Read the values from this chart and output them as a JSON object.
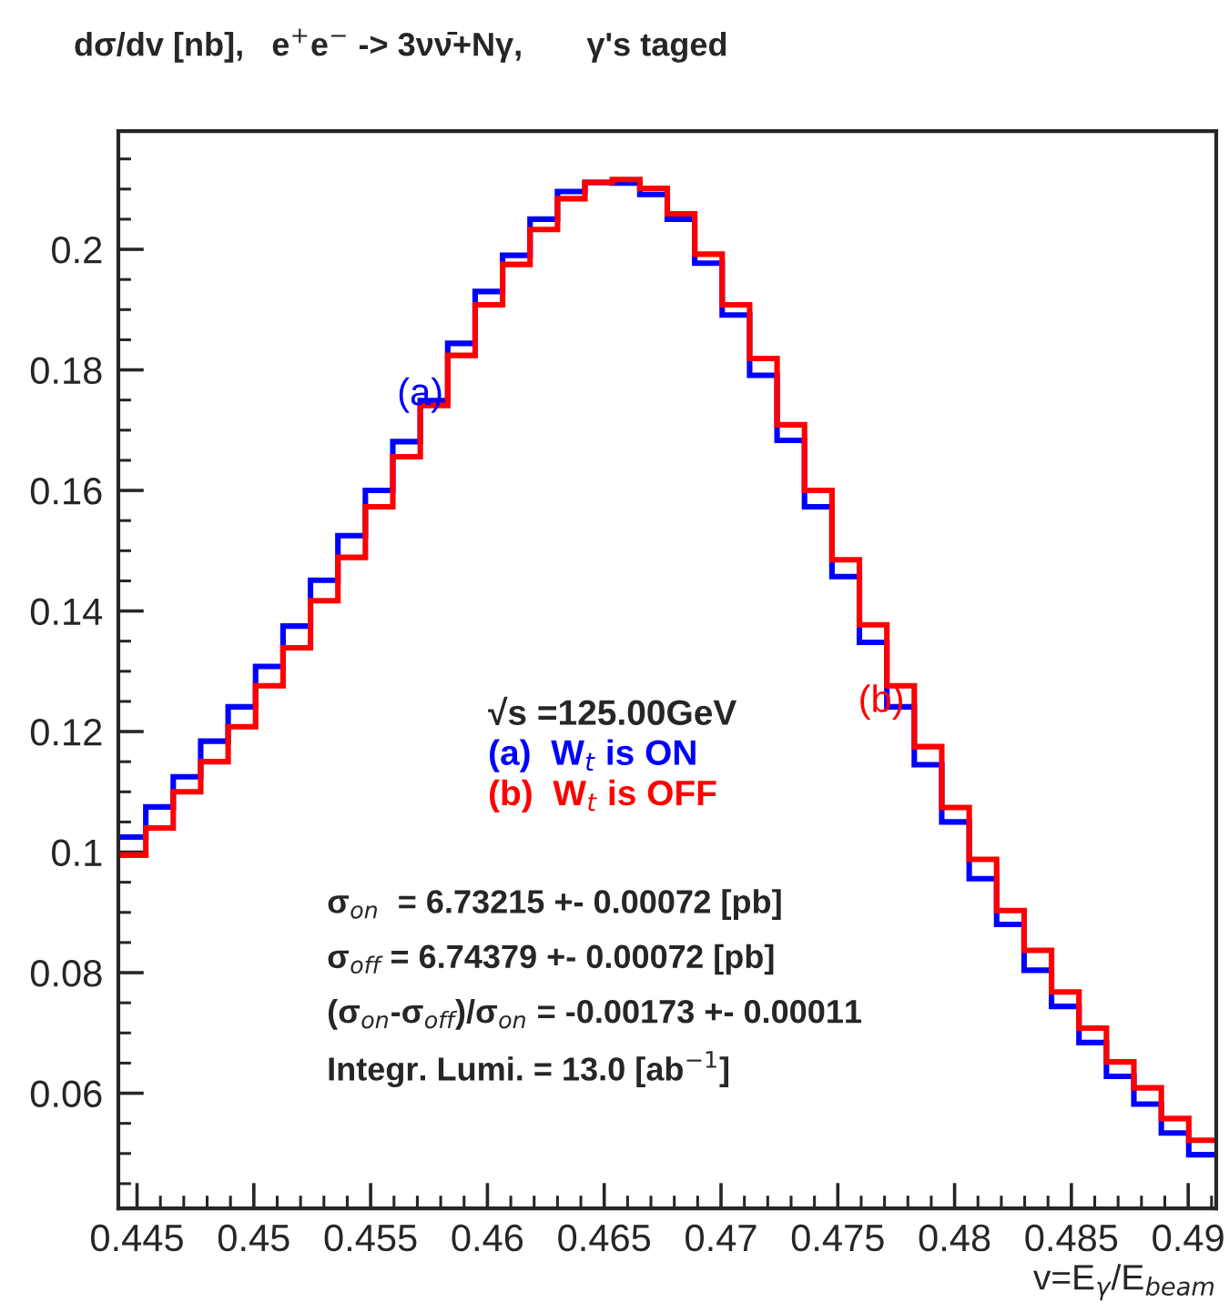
{
  "chart_data": {
    "type": "histogram",
    "title": "dσ/dv [nb],   e$^{+}$e$^{−}$ -> 3νν̄+Nγ,       γ's taged",
    "xlabel": "v=E$_{γ}$/E$_{beam}$",
    "legend_title": "√s =125.00GeV",
    "bins": [
      0.4442,
      0.445375,
      0.44655,
      0.447725,
      0.4489,
      0.450075,
      0.45125,
      0.452425,
      0.4536,
      0.454775,
      0.45595,
      0.457125,
      0.4583,
      0.459475,
      0.46065,
      0.461825,
      0.463,
      0.464175,
      0.46535,
      0.466525,
      0.4677,
      0.468875,
      0.47005,
      0.471225,
      0.4724,
      0.473575,
      0.47475,
      0.475925,
      0.4771,
      0.478275,
      0.47945,
      0.480625,
      0.4818,
      0.482975,
      0.48415,
      0.485325,
      0.4865,
      0.487675,
      0.48885,
      0.490025,
      0.4912
    ],
    "series": [
      {
        "name": "(a)  W$_{t}$ is ON",
        "color": "#0000ff",
        "values": [
          0.1025,
          0.1075,
          0.1125,
          0.1184,
          0.1241,
          0.1308,
          0.1375,
          0.1451,
          0.1525,
          0.16,
          0.1681,
          0.1749,
          0.1844,
          0.193,
          0.199,
          0.205,
          0.2096,
          0.2111,
          0.211,
          0.2091,
          0.205,
          0.1977,
          0.1891,
          0.1791,
          0.1683,
          0.1573,
          0.1457,
          0.1348,
          0.1241,
          0.1145,
          0.105,
          0.0956,
          0.088,
          0.0804,
          0.0744,
          0.0684,
          0.0628,
          0.0582,
          0.0534,
          0.0498
        ]
      },
      {
        "name": "(b)  W$_{t}$ is OFF",
        "color": "#ff0000",
        "values": [
          0.0995,
          0.104,
          0.11,
          0.115,
          0.1208,
          0.1276,
          0.1339,
          0.1417,
          0.1489,
          0.1573,
          0.1656,
          0.1741,
          0.1824,
          0.1908,
          0.1975,
          0.2033,
          0.2084,
          0.2111,
          0.2116,
          0.2101,
          0.2059,
          0.1992,
          0.1908,
          0.1819,
          0.1709,
          0.16,
          0.1485,
          0.1377,
          0.1276,
          0.1175,
          0.1074,
          0.0988,
          0.0903,
          0.0837,
          0.0768,
          0.0708,
          0.0652,
          0.0609,
          0.0558,
          0.0522
        ]
      }
    ],
    "annotations": [
      "(a)",
      "(b)",
      "σ$_{on}$  = 6.73215 +- 0.00072 [pb]",
      "σ$_{off}$ = 6.74379 +- 0.00072 [pb]",
      "(σ$_{on}$-σ$_{off}$)/σ$_{on}$ = -0.00173 +- 0.00011",
      "Integr. Lumi. = 13.0 [ab$^{−1}$]"
    ],
    "xlim": [
      0.4442,
      0.4912
    ],
    "ylim": [
      0.0409,
      0.2196
    ],
    "xticks": [
      0.445,
      {
        "value": 0.446,
        "label": null
      },
      {
        "value": 0.447,
        "label": null
      },
      {
        "value": 0.448,
        "label": null
      },
      {
        "value": 0.449,
        "label": null
      },
      0.45,
      {
        "value": 0.451,
        "label": null
      },
      {
        "value": 0.452,
        "label": null
      },
      {
        "value": 0.453,
        "label": null
      },
      {
        "value": 0.454,
        "label": null
      },
      0.455,
      {
        "value": 0.456,
        "label": null
      },
      {
        "value": 0.457,
        "label": null
      },
      {
        "value": 0.458,
        "label": null
      },
      {
        "value": 0.459,
        "label": null
      },
      0.46,
      {
        "value": 0.461,
        "label": null
      },
      {
        "value": 0.462,
        "label": null
      },
      {
        "value": 0.463,
        "label": null
      },
      {
        "value": 0.464,
        "label": null
      },
      0.465,
      {
        "value": 0.466,
        "label": null
      },
      {
        "value": 0.467,
        "label": null
      },
      {
        "value": 0.468,
        "label": null
      },
      {
        "value": 0.469,
        "label": null
      },
      0.47,
      {
        "value": 0.471,
        "label": null
      },
      {
        "value": 0.472,
        "label": null
      },
      {
        "value": 0.473,
        "label": null
      },
      {
        "value": 0.474,
        "label": null
      },
      0.475,
      {
        "value": 0.476,
        "label": null
      },
      {
        "value": 0.477,
        "label": null
      },
      {
        "value": 0.478,
        "label": null
      },
      {
        "value": 0.479,
        "label": null
      },
      0.48,
      {
        "value": 0.481,
        "label": null
      },
      {
        "value": 0.482,
        "label": null
      },
      {
        "value": 0.483,
        "label": null
      },
      {
        "value": 0.484,
        "label": null
      },
      0.485,
      {
        "value": 0.486,
        "label": null
      },
      {
        "value": 0.487,
        "label": null
      },
      {
        "value": 0.488,
        "label": null
      },
      {
        "value": 0.489,
        "label": null
      },
      0.49,
      {
        "value": 0.491,
        "label": null
      }
    ],
    "yticks": [
      {
        "value": 0.045,
        "label": null
      },
      {
        "value": 0.05,
        "label": null
      },
      {
        "value": 0.055,
        "label": null
      },
      0.06,
      {
        "value": 0.065,
        "label": null
      },
      {
        "value": 0.07,
        "label": null
      },
      {
        "value": 0.075,
        "label": null
      },
      0.08,
      {
        "value": 0.085,
        "label": null
      },
      {
        "value": 0.09,
        "label": null
      },
      {
        "value": 0.095,
        "label": null
      },
      0.1,
      {
        "value": 0.105,
        "label": null
      },
      {
        "value": 0.11,
        "label": null
      },
      {
        "value": 0.115,
        "label": null
      },
      0.12,
      {
        "value": 0.125,
        "label": null
      },
      {
        "value": 0.13,
        "label": null
      },
      {
        "value": 0.135,
        "label": null
      },
      0.14,
      {
        "value": 0.145,
        "label": null
      },
      {
        "value": 0.15,
        "label": null
      },
      {
        "value": 0.155,
        "label": null
      },
      0.16,
      {
        "value": 0.165,
        "label": null
      },
      {
        "value": 0.17,
        "label": null
      },
      {
        "value": 0.175,
        "label": null
      },
      0.18,
      {
        "value": 0.185,
        "label": null
      },
      {
        "value": 0.19,
        "label": null
      },
      {
        "value": 0.195,
        "label": null
      },
      0.2,
      {
        "value": 0.205,
        "label": null
      },
      {
        "value": 0.21,
        "label": null
      },
      {
        "value": 0.215,
        "label": null
      }
    ],
    "legend": "center",
    "grid": false
  }
}
